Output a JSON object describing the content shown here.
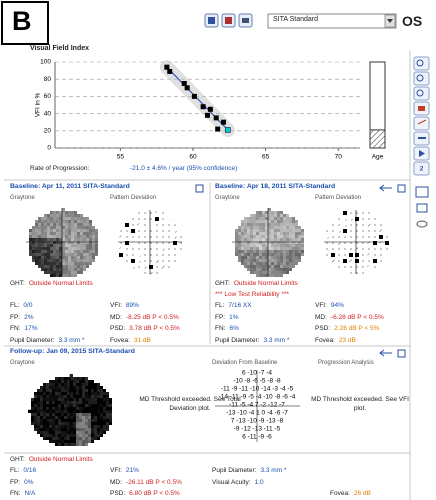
{
  "panel_label": "B",
  "toolbar": {
    "strategy": "SITA Standard",
    "eye": "OS"
  },
  "vfi_chart": {
    "title": "Visual Field Index",
    "y_label": "VFI in %",
    "xlim": [
      50.5,
      71.5
    ],
    "xticks": [
      55,
      60,
      65,
      70
    ],
    "ylim": [
      0,
      100
    ],
    "yticks": [
      0,
      20,
      40,
      60,
      80,
      100
    ],
    "grid": true,
    "points": {
      "x": [
        58.2,
        58.4,
        59.4,
        59.6,
        60.1,
        60.7,
        61.2,
        61.0,
        61.6,
        62.1,
        61.7,
        62.4
      ],
      "y": [
        94,
        89,
        75,
        70,
        60,
        48,
        45,
        38,
        35,
        30,
        22,
        21
      ]
    },
    "point_color": "#000000",
    "highlight_color": "#00c8d8",
    "trend_color": "#2040c0",
    "age_bar": {
      "label": "Age",
      "value": 21
    },
    "rate_label": "Rate of Progression:",
    "rate_value": "-21.0 ± 4.6% / year (95% confidence)"
  },
  "baseline_1": {
    "title": "Baseline: Apr 11, 2011 SITA-Standard",
    "headings": [
      "Graytone",
      "Pattern Deviation"
    ],
    "ght": {
      "label": "GHT:",
      "value": "Outside Normal Limits"
    },
    "columns": [
      [
        {
          "label": "FL:",
          "value": "0/0",
          "color": "#1a4fb0"
        },
        {
          "label": "FP:",
          "value": "2%",
          "color": "#1a4fb0"
        },
        {
          "label": "FN:",
          "value": "17%",
          "color": "#1a4fb0"
        },
        {
          "label": "Pupil Diameter:",
          "value": "3.3 mm *",
          "color": "#1a4fb0"
        }
      ],
      [
        {
          "label": "VFI:",
          "value": "89%",
          "color": "#1a4fb0"
        },
        {
          "label": "MD:",
          "value": "-8.25 dB P < 0.5%",
          "color": "#d02020"
        },
        {
          "label": "PSD:",
          "value": "3.78 dB P < 0.5%",
          "color": "#d02020"
        },
        {
          "label": "Fovea:",
          "value": "31 dB",
          "color": "#e08000"
        }
      ]
    ]
  },
  "baseline_2": {
    "title": "Baseline: Apr 18, 2011 SITA-Standard",
    "headings": [
      "Graytone",
      "Pattern Deviation"
    ],
    "ght": {
      "label": "GHT:",
      "value": "Outside Normal Limits"
    },
    "reliability": "*** Low Test Reliability ***",
    "columns": [
      [
        {
          "label": "FL:",
          "value": "7/16 XX",
          "color": "#1a4fb0"
        },
        {
          "label": "FP:",
          "value": "1%",
          "color": "#1a4fb0"
        },
        {
          "label": "FN:",
          "value": "6%",
          "color": "#1a4fb0"
        },
        {
          "label": "Pupil Diameter:",
          "value": "3.3 mm *",
          "color": "#1a4fb0"
        }
      ],
      [
        {
          "label": "VFI:",
          "value": "94%",
          "color": "#1a4fb0"
        },
        {
          "label": "MD:",
          "value": "-6.28 dB P < 0.5%",
          "color": "#d02020"
        },
        {
          "label": "PSD:",
          "value": "2.28 dB P < 5%",
          "color": "#e08000"
        },
        {
          "label": "Fovea:",
          "value": "23 dB",
          "color": "#e08000"
        }
      ]
    ]
  },
  "follow_up": {
    "title": "Follow-up: Jan 09, 2015 SITA-Standard",
    "headings": [
      "Graytone",
      "Deviation From Baseline",
      "Progression Analysis"
    ],
    "message_1": "MD Threshold exceeded. See Total Deviation plot.",
    "message_2": "MD Threshold exceeded. See VFI plot.",
    "deviation_rows": [
      "6 -10 -7 -4",
      "-10 -8 -6 -5 -8 -8",
      "-11 -9 -11 -10 -14 -3 -4 -5",
      "-14 -11 -9 -5 -4 -10 -8 -6 -4",
      "-11 -5 -4 7 -2 -12 -7",
      "-13 -10 -4 1 0 -4 -6 -7",
      "7 -13 -10 -9 -13 -8",
      "-9 -12 -13 -11 -5",
      "6 -11 -9 -6"
    ],
    "ght": {
      "label": "GHT:",
      "value": "Outside Normal Limits"
    },
    "columns": [
      [
        {
          "label": "FL:",
          "value": "0/16",
          "color": "#1a4fb0"
        },
        {
          "label": "FP:",
          "value": "0%",
          "color": "#1a4fb0"
        },
        {
          "label": "FN:",
          "value": "N/A",
          "color": "#1a4fb0"
        }
      ],
      [
        {
          "label": "VFI:",
          "value": "21%",
          "color": "#1a4fb0"
        },
        {
          "label": "MD:",
          "value": "-26.11 dB P < 0.5%",
          "color": "#d02020"
        },
        {
          "label": "PSD:",
          "value": "6.80 dB P < 0.5%",
          "color": "#d02020"
        }
      ],
      [
        {
          "label": "Pupil Diameter:",
          "value": "3.3 mm *",
          "color": "#1a4fb0"
        },
        {
          "label": "Visual Acuity:",
          "value": "1.0",
          "color": "#1a4fb0"
        }
      ]
    ],
    "fovea": {
      "label": "Fovea:",
      "value": "26 dB",
      "color": "#e08000"
    }
  }
}
